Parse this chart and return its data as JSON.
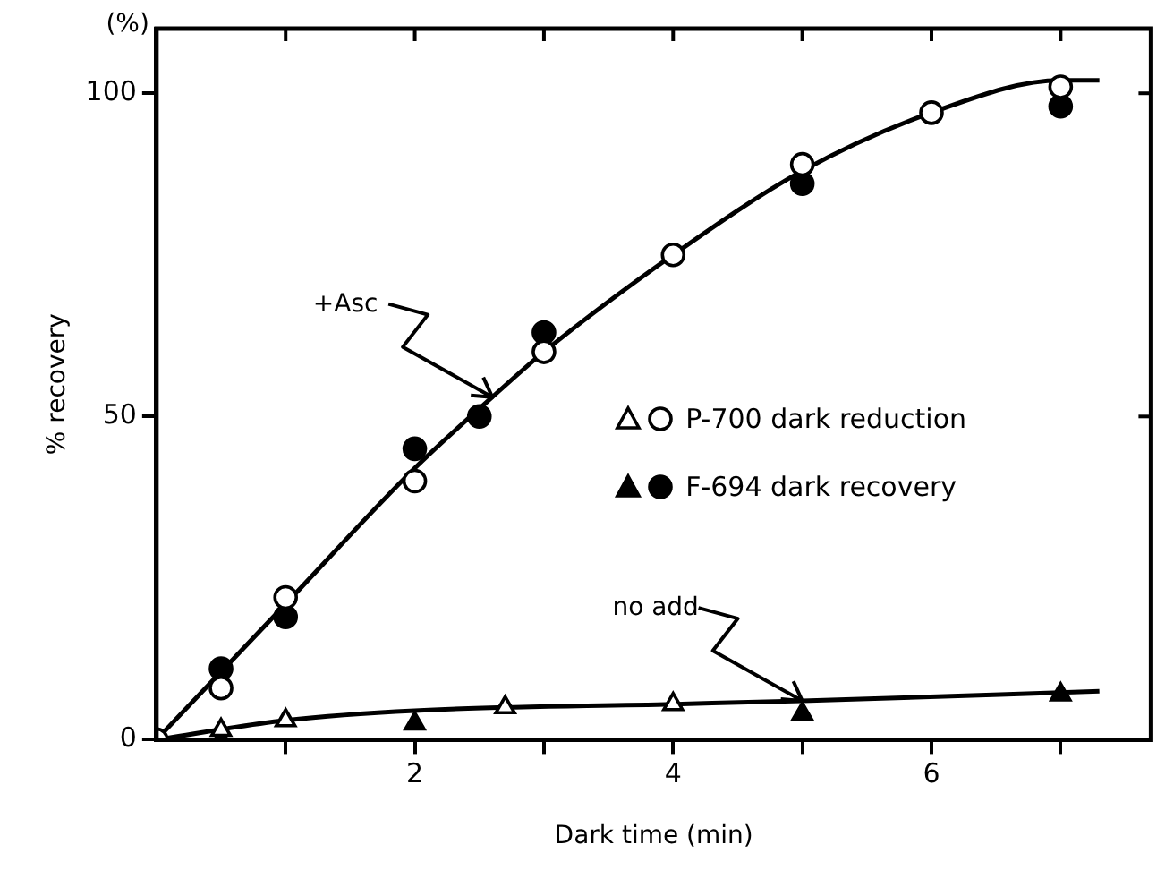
{
  "chart_data": {
    "type": "scatter",
    "xlabel": "Dark time (min)",
    "ylabel": "% recovery",
    "xlim": [
      0,
      7.7
    ],
    "ylim": [
      0,
      110
    ],
    "xticks": [
      {
        "value": 1,
        "label": null
      },
      2,
      {
        "value": 3,
        "label": null
      },
      4,
      {
        "value": 5,
        "label": null
      },
      6,
      {
        "value": 7,
        "label": null
      }
    ],
    "yticks": [
      0,
      50,
      100
    ],
    "grid": false,
    "legend": "right",
    "annotations": [
      "(%)",
      {
        "text": "+Asc",
        "x": 2.6,
        "y": 53
      },
      {
        "text": "no add",
        "x": 5,
        "y": 6
      }
    ],
    "series": [
      {
        "name": "P-700 dark reduction",
        "marker": "circle",
        "color": "#ffffff",
        "x": [
          0,
          0.5,
          1,
          2,
          3,
          4,
          5,
          6,
          7
        ],
        "values": [
          0,
          8,
          22,
          40,
          60,
          75,
          89,
          97,
          101
        ]
      },
      {
        "name": "F-694 dark recovery",
        "marker": "circle",
        "color": "#000000",
        "x": [
          0.5,
          1,
          2,
          2.5,
          3,
          5,
          7
        ],
        "values": [
          11,
          19,
          45,
          50,
          63,
          86,
          98
        ]
      },
      {
        "marker": "triangle",
        "color": "#ffffff",
        "x": [
          0.5,
          1,
          2.7,
          4
        ],
        "values": [
          1.5,
          3,
          5,
          5.5
        ]
      },
      {
        "marker": "triangle",
        "color": "#000000",
        "x": [
          0.5,
          2,
          5,
          7
        ],
        "values": [
          0,
          2.5,
          4,
          7
        ]
      },
      {
        "type": "line",
        "marker": "none",
        "color": "#000000",
        "x": [
          0,
          1,
          2,
          2.6,
          3,
          4,
          5,
          6,
          7,
          7.3
        ],
        "values": [
          0,
          21,
          42,
          53,
          60,
          75,
          88,
          97,
          102,
          102
        ]
      },
      {
        "type": "line",
        "marker": "none",
        "color": "#000000",
        "x": [
          0,
          1,
          2,
          4,
          5,
          7.3
        ],
        "values": [
          0,
          3,
          4.5,
          5.5,
          6,
          7.5
        ]
      }
    ]
  }
}
